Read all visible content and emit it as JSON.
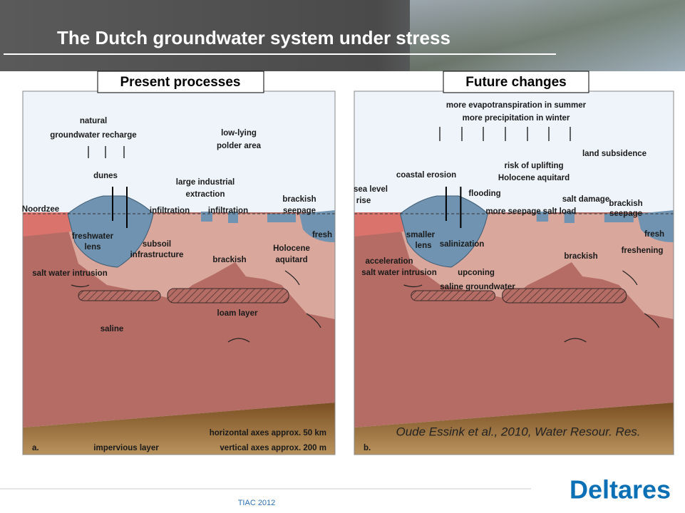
{
  "title": "The Dutch groundwater system under stress",
  "panels": [
    {
      "heading": "Present processes",
      "letter": "a.",
      "labels": [
        "natural",
        "groundwater recharge",
        "low-lying",
        "polder area",
        "dunes",
        "large industrial",
        "extraction",
        "brackish",
        "seepage",
        "Noordzee",
        "infiltration",
        "infiltration",
        "freshwater",
        "lens",
        "subsoil",
        "infrastructure",
        "brackish",
        "Holocene",
        "aquitard",
        "fresh",
        "salt water intrusion",
        "loam layer",
        "saline",
        "impervious layer"
      ],
      "notes": [
        "horizontal axes approx. 50 km",
        "vertical axes approx. 200 m"
      ]
    },
    {
      "heading": "Future changes",
      "letter": "b.",
      "labels": [
        "more evapotranspiration in summer",
        "more precipitation in winter",
        "land subsidence",
        "risk of uplifting",
        "Holocene aquitard",
        "coastal erosion",
        "sea level",
        "rise",
        "flooding",
        "salt damage",
        "brackish",
        "seepage",
        "more seepage",
        "salt load",
        "smaller",
        "lens",
        "salinization",
        "brackish",
        "fresh",
        "freshening",
        "acceleration",
        "salt water intrusion",
        "upconing",
        "saline groundwater"
      ],
      "citation": "Oude Essink et al., 2010, Water Resour. Res."
    }
  ],
  "footer": {
    "event": "TIAC 2012",
    "logo": "Deltares"
  }
}
